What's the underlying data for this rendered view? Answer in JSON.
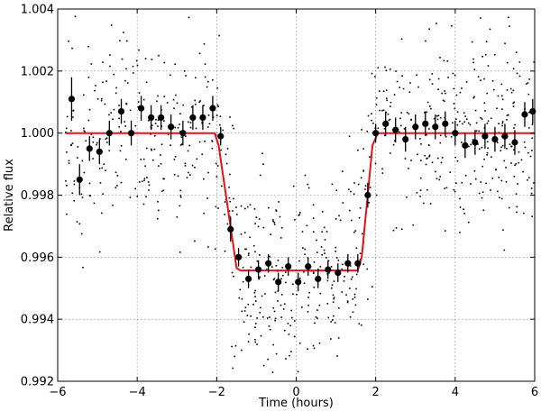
{
  "chart_data": {
    "type": "scatter",
    "title": "",
    "xlabel": "Time (hours)",
    "ylabel": "Relative flux",
    "xlim": [
      -6,
      6
    ],
    "ylim": [
      0.992,
      1.004
    ],
    "xticks": [
      -6,
      -4,
      -2,
      0,
      2,
      4,
      6
    ],
    "xtick_labels": [
      "−6",
      "−4",
      "−2",
      "0",
      "2",
      "4",
      "6"
    ],
    "yticks": [
      0.992,
      0.994,
      0.996,
      0.998,
      1.0,
      1.002,
      1.004
    ],
    "ytick_labels": [
      "0.992",
      "0.994",
      "0.996",
      "0.998",
      "1.000",
      "1.002",
      "1.004"
    ],
    "grid": true,
    "raw_points": {
      "description_style": "small black dots (unbinned photometry)",
      "seed": 7,
      "count": 900,
      "x_range": [
        -5.8,
        6.0
      ]
    },
    "binned_series": {
      "name": "",
      "points": [
        {
          "x": -5.65,
          "y": 1.0011,
          "err": 0.0007
        },
        {
          "x": -5.45,
          "y": 0.9985,
          "err": 0.0005
        },
        {
          "x": -5.2,
          "y": 0.9995,
          "err": 0.0004
        },
        {
          "x": -4.95,
          "y": 0.9994,
          "err": 0.0004
        },
        {
          "x": -4.7,
          "y": 1.0,
          "err": 0.0004
        },
        {
          "x": -4.4,
          "y": 1.0007,
          "err": 0.0004
        },
        {
          "x": -4.15,
          "y": 1.0,
          "err": 0.0004
        },
        {
          "x": -3.9,
          "y": 1.0008,
          "err": 0.0004
        },
        {
          "x": -3.65,
          "y": 1.0005,
          "err": 0.0004
        },
        {
          "x": -3.4,
          "y": 1.0005,
          "err": 0.0004
        },
        {
          "x": -3.15,
          "y": 1.0002,
          "err": 0.0004
        },
        {
          "x": -2.85,
          "y": 1.0,
          "err": 0.0004
        },
        {
          "x": -2.6,
          "y": 1.0005,
          "err": 0.0004
        },
        {
          "x": -2.35,
          "y": 1.0005,
          "err": 0.0004
        },
        {
          "x": -2.1,
          "y": 1.0008,
          "err": 0.0004
        },
        {
          "x": -1.9,
          "y": 0.9999,
          "err": 0.0003
        },
        {
          "x": -1.65,
          "y": 0.9969,
          "err": 0.0004
        },
        {
          "x": -1.45,
          "y": 0.996,
          "err": 0.0003
        },
        {
          "x": -1.2,
          "y": 0.9953,
          "err": 0.0003
        },
        {
          "x": -0.95,
          "y": 0.9956,
          "err": 0.0003
        },
        {
          "x": -0.7,
          "y": 0.9958,
          "err": 0.0003
        },
        {
          "x": -0.45,
          "y": 0.9952,
          "err": 0.0003
        },
        {
          "x": -0.2,
          "y": 0.9957,
          "err": 0.0003
        },
        {
          "x": 0.05,
          "y": 0.9952,
          "err": 0.0003
        },
        {
          "x": 0.3,
          "y": 0.9957,
          "err": 0.0003
        },
        {
          "x": 0.55,
          "y": 0.9953,
          "err": 0.0003
        },
        {
          "x": 0.8,
          "y": 0.9956,
          "err": 0.0003
        },
        {
          "x": 1.05,
          "y": 0.9955,
          "err": 0.0003
        },
        {
          "x": 1.3,
          "y": 0.9958,
          "err": 0.0003
        },
        {
          "x": 1.55,
          "y": 0.9958,
          "err": 0.0003
        },
        {
          "x": 1.8,
          "y": 0.998,
          "err": 0.0004
        },
        {
          "x": 2.0,
          "y": 1.0,
          "err": 0.0003
        },
        {
          "x": 2.25,
          "y": 1.0003,
          "err": 0.0004
        },
        {
          "x": 2.5,
          "y": 1.0001,
          "err": 0.0004
        },
        {
          "x": 2.75,
          "y": 0.9998,
          "err": 0.0004
        },
        {
          "x": 3.0,
          "y": 1.0002,
          "err": 0.0004
        },
        {
          "x": 3.25,
          "y": 1.0003,
          "err": 0.0004
        },
        {
          "x": 3.5,
          "y": 1.0002,
          "err": 0.0004
        },
        {
          "x": 3.75,
          "y": 1.0003,
          "err": 0.0004
        },
        {
          "x": 4.0,
          "y": 1.0,
          "err": 0.0004
        },
        {
          "x": 4.25,
          "y": 0.9996,
          "err": 0.0004
        },
        {
          "x": 4.5,
          "y": 0.9997,
          "err": 0.0004
        },
        {
          "x": 4.75,
          "y": 0.9999,
          "err": 0.0004
        },
        {
          "x": 5.0,
          "y": 0.9998,
          "err": 0.0004
        },
        {
          "x": 5.25,
          "y": 0.9999,
          "err": 0.0004
        },
        {
          "x": 5.5,
          "y": 0.9997,
          "err": 0.0004
        },
        {
          "x": 5.75,
          "y": 1.0006,
          "err": 0.0004
        },
        {
          "x": 5.95,
          "y": 1.0007,
          "err": 0.0004
        }
      ]
    },
    "model_curve": {
      "name": "",
      "color": "#e8101a",
      "points": [
        {
          "x": -5.8,
          "y": 1.0
        },
        {
          "x": -2.05,
          "y": 1.0
        },
        {
          "x": -1.95,
          "y": 0.9996
        },
        {
          "x": -1.5,
          "y": 0.99565
        },
        {
          "x": -1.4,
          "y": 0.99557
        },
        {
          "x": 1.55,
          "y": 0.99557
        },
        {
          "x": 1.65,
          "y": 0.996
        },
        {
          "x": 1.92,
          "y": 0.9996
        },
        {
          "x": 2.05,
          "y": 1.0
        },
        {
          "x": 6.0,
          "y": 1.0
        }
      ]
    }
  }
}
